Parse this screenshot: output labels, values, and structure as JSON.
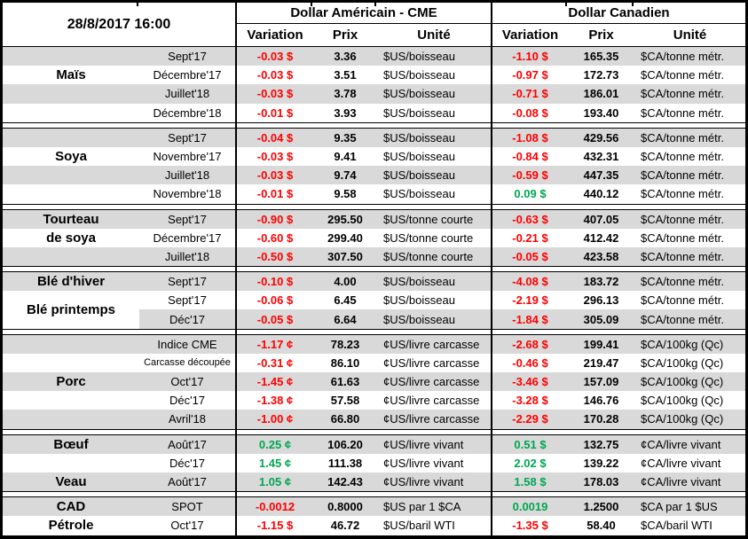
{
  "header": {
    "date": "28/8/2017 16:00",
    "groups": [
      {
        "title": "Dollar Américain - CME",
        "cols": [
          "Variation",
          "Prix",
          "Unité"
        ]
      },
      {
        "title": "Dollar Canadien",
        "cols": [
          "Variation",
          "Prix",
          "Unité"
        ]
      }
    ]
  },
  "colors": {
    "negative": "#FF0000",
    "positive": "#00A651",
    "stripe": "#D9D9D9",
    "grid": "#000000"
  },
  "sections": [
    {
      "id": "mais",
      "labels": [
        {
          "text": "Maïs",
          "row": 1,
          "span": 1
        }
      ],
      "rows": [
        {
          "month": "Sept'17",
          "us_variation": "-0.03 $",
          "us_trend": "neg",
          "us_prix": "3.36",
          "us_unite": "$US/boisseau",
          "ca_variation": "-1.10 $",
          "ca_trend": "neg",
          "ca_prix": "165.35",
          "ca_unite": "$CA/tonne métr."
        },
        {
          "month": "Décembre'17",
          "us_variation": "-0.03 $",
          "us_trend": "neg",
          "us_prix": "3.51",
          "us_unite": "$US/boisseau",
          "ca_variation": "-0.97 $",
          "ca_trend": "neg",
          "ca_prix": "172.73",
          "ca_unite": "$CA/tonne métr."
        },
        {
          "month": "Juillet'18",
          "us_variation": "-0.03 $",
          "us_trend": "neg",
          "us_prix": "3.78",
          "us_unite": "$US/boisseau",
          "ca_variation": "-0.71 $",
          "ca_trend": "neg",
          "ca_prix": "186.01",
          "ca_unite": "$CA/tonne métr."
        },
        {
          "month": "Décembre'18",
          "us_variation": "-0.01 $",
          "us_trend": "neg",
          "us_prix": "3.93",
          "us_unite": "$US/boisseau",
          "ca_variation": "-0.08 $",
          "ca_trend": "neg",
          "ca_prix": "193.40",
          "ca_unite": "$CA/tonne métr."
        }
      ]
    },
    {
      "id": "soya",
      "labels": [
        {
          "text": "Soya",
          "row": 1,
          "span": 1
        }
      ],
      "rows": [
        {
          "month": "Sept'17",
          "us_variation": "-0.04 $",
          "us_trend": "neg",
          "us_prix": "9.35",
          "us_unite": "$US/boisseau",
          "ca_variation": "-1.08 $",
          "ca_trend": "neg",
          "ca_prix": "429.56",
          "ca_unite": "$CA/tonne métr."
        },
        {
          "month": "Novembre'17",
          "us_variation": "-0.03 $",
          "us_trend": "neg",
          "us_prix": "9.41",
          "us_unite": "$US/boisseau",
          "ca_variation": "-0.84 $",
          "ca_trend": "neg",
          "ca_prix": "432.31",
          "ca_unite": "$CA/tonne métr."
        },
        {
          "month": "Juillet'18",
          "us_variation": "-0.03 $",
          "us_trend": "neg",
          "us_prix": "9.74",
          "us_unite": "$US/boisseau",
          "ca_variation": "-0.59 $",
          "ca_trend": "neg",
          "ca_prix": "447.35",
          "ca_unite": "$CA/tonne métr."
        },
        {
          "month": "Novembre'18",
          "us_variation": "-0.01 $",
          "us_trend": "neg",
          "us_prix": "9.58",
          "us_unite": "$US/boisseau",
          "ca_variation": "0.09 $",
          "ca_trend": "pos",
          "ca_prix": "440.12",
          "ca_unite": "$CA/tonne métr."
        }
      ]
    },
    {
      "id": "tourteau-de-soya",
      "labels": [
        {
          "text": "Tourteau",
          "row": 0,
          "span": 1
        },
        {
          "text": "de soya",
          "row": 1,
          "span": 1
        }
      ],
      "rows": [
        {
          "month": "Sept'17",
          "us_variation": "-0.90 $",
          "us_trend": "neg",
          "us_prix": "295.50",
          "us_unite": "$US/tonne courte",
          "ca_variation": "-0.63 $",
          "ca_trend": "neg",
          "ca_prix": "407.05",
          "ca_unite": "$CA/tonne métr."
        },
        {
          "month": "Décembre'17",
          "us_variation": "-0.60 $",
          "us_trend": "neg",
          "us_prix": "299.40",
          "us_unite": "$US/tonne courte",
          "ca_variation": "-0.21 $",
          "ca_trend": "neg",
          "ca_prix": "412.42",
          "ca_unite": "$CA/tonne métr."
        },
        {
          "month": "Juillet'18",
          "us_variation": "-0.50 $",
          "us_trend": "neg",
          "us_prix": "307.50",
          "us_unite": "$US/tonne courte",
          "ca_variation": "-0.05 $",
          "ca_trend": "neg",
          "ca_prix": "423.58",
          "ca_unite": "$CA/tonne métr."
        }
      ]
    },
    {
      "id": "ble",
      "labels": [
        {
          "text": "Blé d'hiver",
          "row": 0,
          "span": 1
        },
        {
          "text": "Blé printemps",
          "row": 1,
          "span": 2,
          "bg": "#FFFFFF"
        }
      ],
      "rows": [
        {
          "month": "Sept'17",
          "us_variation": "-0.10 $",
          "us_trend": "neg",
          "us_prix": "4.00",
          "us_unite": "$US/boisseau",
          "ca_variation": "-4.08 $",
          "ca_trend": "neg",
          "ca_prix": "183.72",
          "ca_unite": "$CA/tonne métr."
        },
        {
          "month": "Sept'17",
          "us_variation": "-0.06 $",
          "us_trend": "neg",
          "us_prix": "6.45",
          "us_unite": "$US/boisseau",
          "ca_variation": "-2.19 $",
          "ca_trend": "neg",
          "ca_prix": "296.13",
          "ca_unite": "$CA/tonne métr."
        },
        {
          "month": "Déc'17",
          "us_variation": "-0.05 $",
          "us_trend": "neg",
          "us_prix": "6.64",
          "us_unite": "$US/boisseau",
          "ca_variation": "-1.84 $",
          "ca_trend": "neg",
          "ca_prix": "305.09",
          "ca_unite": "$CA/tonne métr."
        }
      ]
    },
    {
      "id": "porc",
      "labels": [
        {
          "text": "Porc",
          "row": 2,
          "span": 1
        }
      ],
      "rows": [
        {
          "month": "Indice CME",
          "us_variation": "-1.17 ¢",
          "us_trend": "neg",
          "us_prix": "78.23",
          "us_unite": "¢US/livre carcasse",
          "ca_variation": "-2.68 $",
          "ca_trend": "neg",
          "ca_prix": "199.41",
          "ca_unite": "$CA/100kg (Qc)"
        },
        {
          "month": "Carcasse découpée",
          "month_small": true,
          "us_variation": "-0.31 ¢",
          "us_trend": "neg",
          "us_prix": "86.10",
          "us_unite": "¢US/livre carcasse",
          "ca_variation": "-0.46 $",
          "ca_trend": "neg",
          "ca_prix": "219.47",
          "ca_unite": "$CA/100kg (Qc)"
        },
        {
          "month": "Oct'17",
          "us_variation": "-1.45 ¢",
          "us_trend": "neg",
          "us_prix": "61.63",
          "us_unite": "¢US/livre carcasse",
          "ca_variation": "-3.46 $",
          "ca_trend": "neg",
          "ca_prix": "157.09",
          "ca_unite": "$CA/100kg (Qc)"
        },
        {
          "month": "Déc'17",
          "us_variation": "-1.38 ¢",
          "us_trend": "neg",
          "us_prix": "57.58",
          "us_unite": "¢US/livre carcasse",
          "ca_variation": "-3.28 $",
          "ca_trend": "neg",
          "ca_prix": "146.76",
          "ca_unite": "$CA/100kg (Qc)"
        },
        {
          "month": "Avril'18",
          "us_variation": "-1.00 ¢",
          "us_trend": "neg",
          "us_prix": "66.80",
          "us_unite": "¢US/livre carcasse",
          "ca_variation": "-2.29 $",
          "ca_trend": "neg",
          "ca_prix": "170.28",
          "ca_unite": "$CA/100kg (Qc)"
        }
      ]
    },
    {
      "id": "boeuf-veau",
      "labels": [
        {
          "text": "Bœuf",
          "row": 0,
          "span": 1
        },
        {
          "text": "Veau",
          "row": 2,
          "span": 1
        }
      ],
      "rows": [
        {
          "month": "Août'17",
          "us_variation": "0.25 ¢",
          "us_trend": "pos",
          "us_prix": "106.20",
          "us_unite": "¢US/livre vivant",
          "ca_variation": "0.51 $",
          "ca_trend": "pos",
          "ca_prix": "132.75",
          "ca_unite": "¢CA/livre vivant"
        },
        {
          "month": "Déc'17",
          "us_variation": "1.45 ¢",
          "us_trend": "pos",
          "us_prix": "111.38",
          "us_unite": "¢US/livre vivant",
          "ca_variation": "2.02 $",
          "ca_trend": "pos",
          "ca_prix": "139.22",
          "ca_unite": "¢CA/livre vivant"
        },
        {
          "month": "Août'17",
          "us_variation": "1.05 ¢",
          "us_trend": "pos",
          "us_prix": "142.43",
          "us_unite": "¢US/livre vivant",
          "ca_variation": "1.58 $",
          "ca_trend": "pos",
          "ca_prix": "178.03",
          "ca_unite": "¢CA/livre vivant"
        }
      ]
    },
    {
      "id": "cad-petrole",
      "labels": [
        {
          "text": "CAD",
          "row": 0,
          "span": 1
        },
        {
          "text": "Pétrole",
          "row": 1,
          "span": 1
        }
      ],
      "rows": [
        {
          "month": "SPOT",
          "us_variation": "-0.0012",
          "us_trend": "neg",
          "us_prix": "0.8000",
          "us_unite": "$US par 1 $CA",
          "ca_variation": "0.0019",
          "ca_trend": "pos",
          "ca_prix": "1.2500",
          "ca_unite": "$CA par 1 $US"
        },
        {
          "month": "Oct'17",
          "us_variation": "-1.15 $",
          "us_trend": "neg",
          "us_prix": "46.72",
          "us_unite": "$US/baril WTI",
          "ca_variation": "-1.35 $",
          "ca_trend": "neg",
          "ca_prix": "58.40",
          "ca_unite": "$CA/baril WTI"
        }
      ]
    }
  ]
}
